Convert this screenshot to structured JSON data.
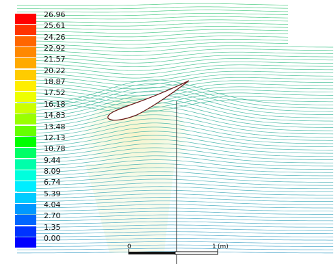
{
  "legend": {
    "colors": [
      "#ff0000",
      "#ff3300",
      "#ff6600",
      "#ff8800",
      "#ffaa00",
      "#ffcc00",
      "#ffee00",
      "#eeff00",
      "#ccff00",
      "#99ff00",
      "#66ff00",
      "#00ff00",
      "#00ff66",
      "#00ffaa",
      "#00ffdd",
      "#00eeff",
      "#00ccff",
      "#0099ff",
      "#0066ff",
      "#0033ff",
      "#0000ff"
    ],
    "ticks": [
      "26.96",
      "25.61",
      "24.26",
      "22.92",
      "21.57",
      "20.22",
      "18.87",
      "17.52",
      "16.18",
      "14.83",
      "13.48",
      "12.13",
      "10.78",
      "9.44",
      "8.09",
      "6.74",
      "5.39",
      "4.04",
      "2.70",
      "1.35",
      "0.00"
    ]
  },
  "scale_bar": {
    "start_label": "0",
    "end_label": "1",
    "unit_label": "(m)"
  }
}
